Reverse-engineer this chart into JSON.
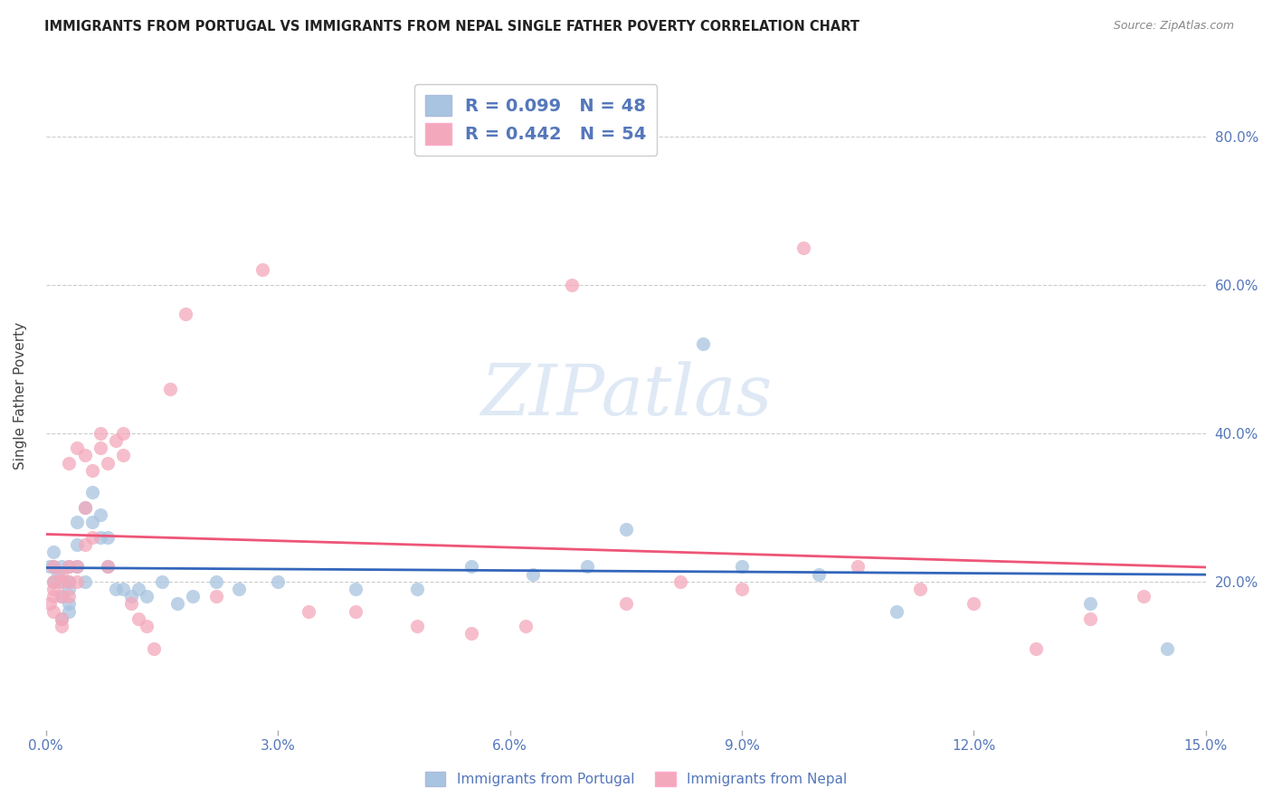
{
  "title": "IMMIGRANTS FROM PORTUGAL VS IMMIGRANTS FROM NEPAL SINGLE FATHER POVERTY CORRELATION CHART",
  "source": "Source: ZipAtlas.com",
  "ylabel": "Single Father Poverty",
  "legend_label1": "R = 0.099   N = 48",
  "legend_label2": "R = 0.442   N = 54",
  "scatter_color1": "#A8C4E0",
  "scatter_color2": "#F4A8BB",
  "line_color1": "#3366BB",
  "line_color2": "#EE5577",
  "legend_patch_color1": "#A8C4E0",
  "legend_patch_color2": "#F4A8BB",
  "watermark": "ZIPatlas",
  "xlim": [
    0.0,
    0.15
  ],
  "ylim": [
    0.0,
    0.9
  ],
  "portugal_x": [
    0.0005,
    0.001,
    0.001,
    0.001,
    0.0015,
    0.002,
    0.002,
    0.002,
    0.002,
    0.003,
    0.003,
    0.003,
    0.003,
    0.003,
    0.004,
    0.004,
    0.004,
    0.005,
    0.005,
    0.006,
    0.006,
    0.007,
    0.007,
    0.008,
    0.008,
    0.009,
    0.01,
    0.011,
    0.012,
    0.013,
    0.015,
    0.017,
    0.019,
    0.022,
    0.025,
    0.03,
    0.04,
    0.048,
    0.055,
    0.063,
    0.07,
    0.075,
    0.085,
    0.09,
    0.1,
    0.11,
    0.135,
    0.145
  ],
  "portugal_y": [
    0.22,
    0.2,
    0.22,
    0.24,
    0.21,
    0.2,
    0.22,
    0.18,
    0.15,
    0.22,
    0.2,
    0.17,
    0.19,
    0.16,
    0.22,
    0.25,
    0.28,
    0.2,
    0.3,
    0.28,
    0.32,
    0.26,
    0.29,
    0.22,
    0.26,
    0.19,
    0.19,
    0.18,
    0.19,
    0.18,
    0.2,
    0.17,
    0.18,
    0.2,
    0.19,
    0.2,
    0.19,
    0.19,
    0.22,
    0.21,
    0.22,
    0.27,
    0.52,
    0.22,
    0.21,
    0.16,
    0.17,
    0.11
  ],
  "nepal_x": [
    0.0005,
    0.001,
    0.001,
    0.001,
    0.001,
    0.001,
    0.002,
    0.002,
    0.002,
    0.002,
    0.002,
    0.003,
    0.003,
    0.003,
    0.003,
    0.004,
    0.004,
    0.004,
    0.005,
    0.005,
    0.005,
    0.006,
    0.006,
    0.007,
    0.007,
    0.008,
    0.008,
    0.009,
    0.01,
    0.01,
    0.011,
    0.012,
    0.013,
    0.014,
    0.016,
    0.018,
    0.022,
    0.028,
    0.034,
    0.04,
    0.048,
    0.055,
    0.062,
    0.068,
    0.075,
    0.082,
    0.09,
    0.098,
    0.105,
    0.113,
    0.12,
    0.128,
    0.135,
    0.142
  ],
  "nepal_y": [
    0.17,
    0.19,
    0.18,
    0.2,
    0.22,
    0.16,
    0.21,
    0.18,
    0.2,
    0.15,
    0.14,
    0.22,
    0.2,
    0.18,
    0.36,
    0.2,
    0.22,
    0.38,
    0.25,
    0.3,
    0.37,
    0.26,
    0.35,
    0.38,
    0.4,
    0.36,
    0.22,
    0.39,
    0.37,
    0.4,
    0.17,
    0.15,
    0.14,
    0.11,
    0.46,
    0.56,
    0.18,
    0.62,
    0.16,
    0.16,
    0.14,
    0.13,
    0.14,
    0.6,
    0.17,
    0.2,
    0.19,
    0.65,
    0.22,
    0.19,
    0.17,
    0.11,
    0.15,
    0.18
  ]
}
